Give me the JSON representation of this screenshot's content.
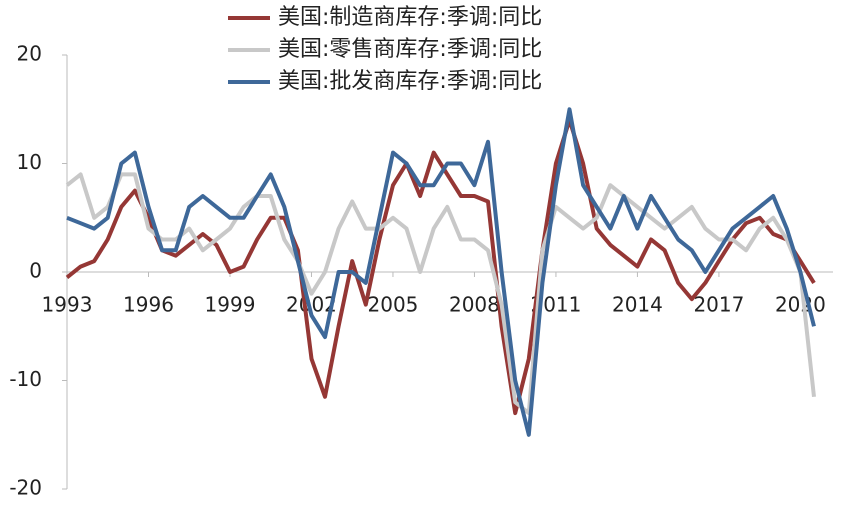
{
  "chart_data": {
    "type": "line",
    "x": [
      1993,
      1993.5,
      1994,
      1994.5,
      1995,
      1995.5,
      1996,
      1996.5,
      1997,
      1997.5,
      1998,
      1998.5,
      1999,
      1999.5,
      2000,
      2000.5,
      2001,
      2001.5,
      2002,
      2002.5,
      2003,
      2003.5,
      2004,
      2004.5,
      2005,
      2005.5,
      2006,
      2006.5,
      2007,
      2007.5,
      2008,
      2008.5,
      2009,
      2009.5,
      2010,
      2010.5,
      2011,
      2011.5,
      2012,
      2012.5,
      2013,
      2013.5,
      2014,
      2014.5,
      2015,
      2015.5,
      2016,
      2016.5,
      2017,
      2017.5,
      2018,
      2018.5,
      2019,
      2019.5,
      2020,
      2020.5
    ],
    "series": [
      {
        "name": "美国:制造商库存:季调:同比",
        "color": "#953735",
        "values": [
          -0.5,
          0.5,
          1,
          3,
          6,
          7.5,
          5,
          2,
          1.5,
          2.5,
          3.5,
          2.5,
          0,
          0.5,
          3,
          5,
          5,
          2,
          -8,
          -11.5,
          -5,
          1,
          -3,
          3,
          8,
          10,
          7,
          11,
          9,
          7,
          7,
          6.5,
          -5,
          -13,
          -8,
          2,
          10,
          14,
          10,
          4,
          2.5,
          1.5,
          0.5,
          3,
          2,
          -1,
          -2.5,
          -1,
          1,
          3,
          4.5,
          5,
          3.5,
          3,
          1,
          -1
        ]
      },
      {
        "name": "美国:零售商库存:季调:同比",
        "color": "#c8c8c8",
        "values": [
          8,
          9,
          5,
          6,
          9,
          9,
          4,
          3,
          3,
          4,
          2,
          3,
          4,
          6,
          7,
          7,
          3,
          1,
          -2,
          0,
          4,
          6.5,
          4,
          4,
          5,
          4,
          0,
          4,
          6,
          3,
          3,
          2,
          -3,
          -12,
          -13,
          2,
          6,
          5,
          4,
          5,
          8,
          7,
          6,
          5,
          4,
          5,
          6,
          4,
          3,
          3,
          2,
          4,
          5,
          3,
          0,
          -11.5
        ]
      },
      {
        "name": "美国:批发商库存:季调:同比",
        "color": "#3e6899",
        "values": [
          5,
          4.5,
          4,
          5,
          10,
          11,
          6,
          2,
          2,
          6,
          7,
          6,
          5,
          5,
          7,
          9,
          6,
          1,
          -4,
          -6,
          0,
          0,
          -1,
          5,
          11,
          10,
          8,
          8,
          10,
          10,
          8,
          12,
          0,
          -10,
          -15,
          -1,
          8,
          15,
          8,
          6,
          4,
          7,
          4,
          7,
          5,
          3,
          2,
          0,
          2,
          4,
          5,
          6,
          7,
          4,
          0,
          -5
        ]
      }
    ],
    "xlim": [
      1993,
      2021.2
    ],
    "xticks": [
      1993,
      1996,
      1999,
      2002,
      2005,
      2008,
      2011,
      2014,
      2017,
      2020
    ],
    "ylim": [
      -20,
      20
    ],
    "yticks": [
      -20,
      -10,
      0,
      10,
      20
    ]
  }
}
